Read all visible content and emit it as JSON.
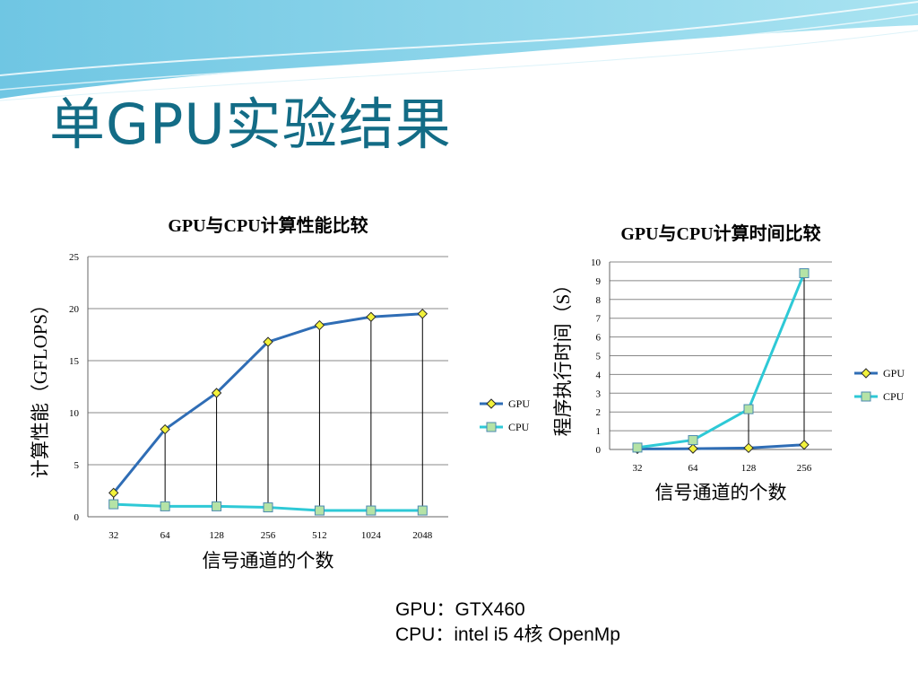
{
  "slide": {
    "title": "单GPU实验结果",
    "hardware": [
      "GPU：GTX460",
      "CPU：intel i5 4核 OpenMp"
    ]
  },
  "colors": {
    "title": "#136c86",
    "gpu_line": "#2f6db5",
    "gpu_marker": "#f2f23c",
    "cpu_line": "#2ec9d6",
    "cpu_marker": "#b5e3a6",
    "grid": "#888888"
  },
  "chart_data": [
    {
      "type": "line",
      "title": "GPU与CPU计算性能比较",
      "xlabel": "信号通道的个数",
      "ylabel": "计算性能（GFLOPS）",
      "categories": [
        "32",
        "64",
        "128",
        "256",
        "512",
        "1024",
        "2048"
      ],
      "ylim": [
        0,
        25
      ],
      "yticks": [
        0,
        5,
        10,
        15,
        20,
        25
      ],
      "grid": true,
      "drop_lines": true,
      "legend_position": "right",
      "series": [
        {
          "name": "GPU",
          "values": [
            2.3,
            8.4,
            11.9,
            16.8,
            18.4,
            19.2,
            19.5
          ]
        },
        {
          "name": "CPU",
          "values": [
            1.2,
            1.0,
            1.0,
            0.9,
            0.6,
            0.6,
            0.6
          ]
        }
      ]
    },
    {
      "type": "line",
      "title": "GPU与CPU计算时间比较",
      "xlabel": "信号通道的个数",
      "ylabel": "程序执行时间（S）",
      "categories": [
        "32",
        "64",
        "128",
        "256"
      ],
      "ylim": [
        0,
        10
      ],
      "yticks": [
        0,
        1,
        2,
        3,
        4,
        5,
        6,
        7,
        8,
        9,
        10
      ],
      "grid": true,
      "drop_lines": true,
      "legend_position": "right",
      "series": [
        {
          "name": "GPU",
          "values": [
            0.03,
            0.04,
            0.08,
            0.25
          ]
        },
        {
          "name": "CPU",
          "values": [
            0.1,
            0.5,
            2.15,
            9.4
          ]
        }
      ]
    }
  ]
}
